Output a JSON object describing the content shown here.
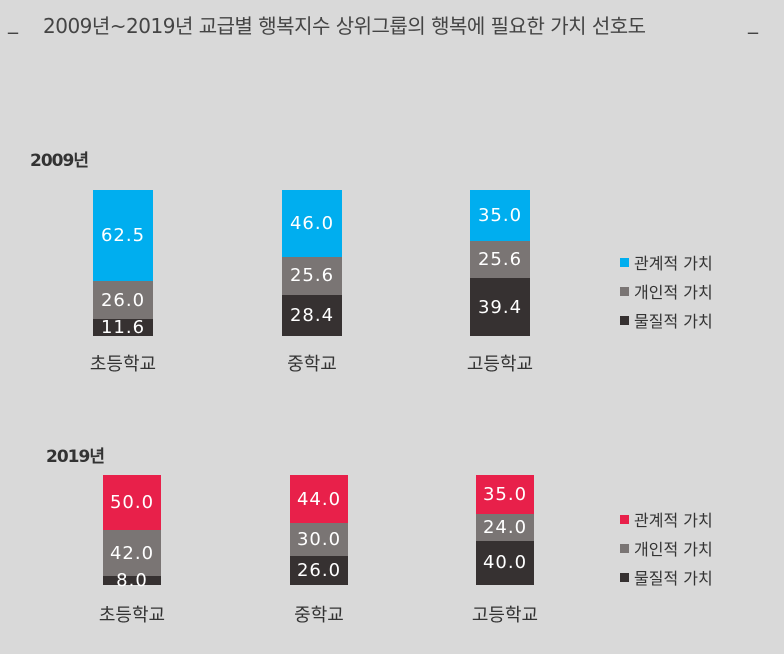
{
  "title": "2009년~2019년 교급별 행복지수 상위그룹의 행복에 필요한 가치 선호도",
  "title_dash": "_",
  "colors": {
    "relational_2009": "#00aeef",
    "relational_2019": "#e8204a",
    "personal": "#7a7574",
    "material": "#363131"
  },
  "chart_data": [
    {
      "type": "bar",
      "stacked": true,
      "title": "2009년",
      "categories": [
        "초등학교",
        "중학교",
        "고등학교"
      ],
      "series": [
        {
          "name": "관계적 가치",
          "values": [
            62.5,
            46.0,
            35.0
          ]
        },
        {
          "name": "개인적 가치",
          "values": [
            26.0,
            25.6,
            25.6
          ]
        },
        {
          "name": "물질적 가치",
          "values": [
            11.6,
            28.4,
            39.4
          ]
        }
      ],
      "legend": "right"
    },
    {
      "type": "bar",
      "stacked": true,
      "title": "2019년",
      "categories": [
        "초등학교",
        "중학교",
        "고등학교"
      ],
      "series": [
        {
          "name": "관계적 가치",
          "values": [
            50.0,
            44.0,
            35.0
          ]
        },
        {
          "name": "개인적 가치",
          "values": [
            42.0,
            30.0,
            24.0
          ]
        },
        {
          "name": "물질적 가치",
          "values": [
            8.0,
            26.0,
            40.0
          ]
        }
      ],
      "legend": "right"
    }
  ]
}
